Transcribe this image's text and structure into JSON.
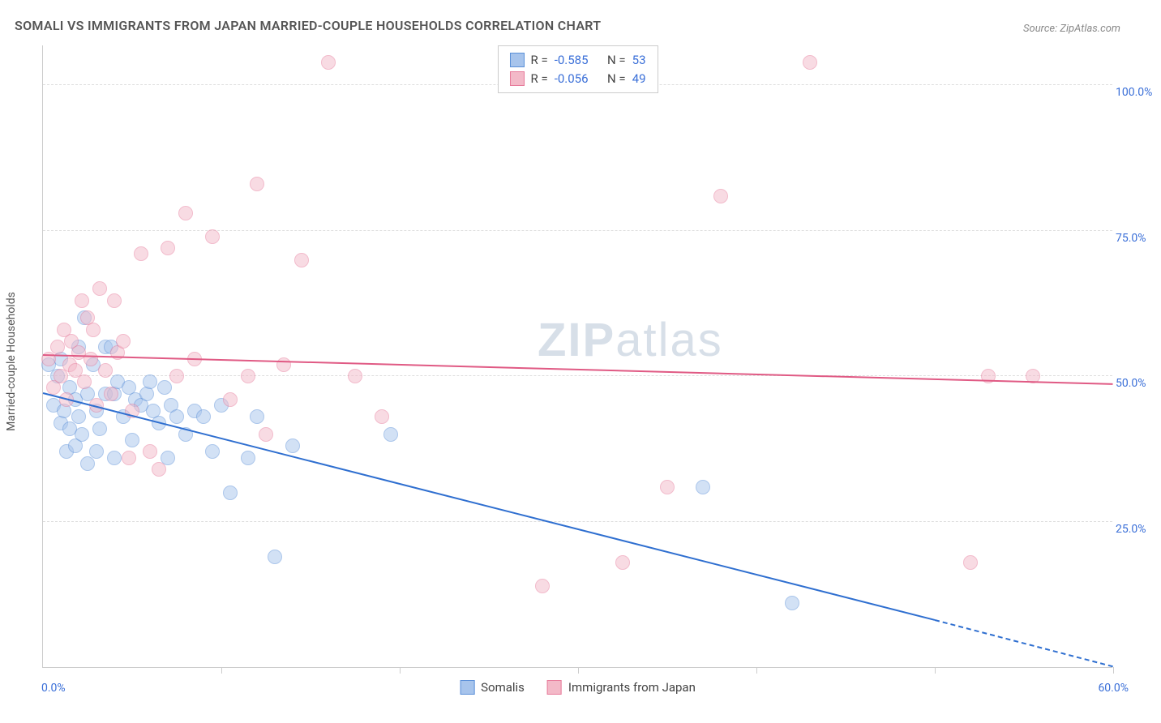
{
  "title": "SOMALI VS IMMIGRANTS FROM JAPAN MARRIED-COUPLE HOUSEHOLDS CORRELATION CHART",
  "source_label": "Source: ZipAtlas.com",
  "y_axis_title": "Married-couple Households",
  "watermark_bold": "ZIP",
  "watermark_rest": "atlas",
  "chart": {
    "type": "scatter",
    "xlim": [
      0,
      60
    ],
    "ylim": [
      0,
      107
    ],
    "x_ticks": [
      0,
      10,
      20,
      30,
      40,
      50,
      60
    ],
    "x_tick_labels_shown": {
      "0": "0.0%",
      "60": "60.0%"
    },
    "y_gridlines": [
      25,
      50,
      75,
      100
    ],
    "y_tick_labels": {
      "25": "25.0%",
      "50": "50.0%",
      "75": "75.0%",
      "100": "100.0%"
    },
    "background_color": "#ffffff",
    "grid_color": "#dddddd",
    "axis_color": "#cccccc",
    "tick_label_color": "#3a6fd8",
    "marker_radius": 9,
    "marker_opacity": 0.5,
    "series": [
      {
        "name": "Somalis",
        "color_fill": "#a7c4ec",
        "color_stroke": "#5a8fd8",
        "trend_color": "#2f6fd0",
        "R": "-0.585",
        "N": "53",
        "trend": {
          "x1": 0,
          "y1": 47,
          "x2": 50,
          "y2": 8,
          "x2_dash": 60,
          "y2_dash": 0
        },
        "points": [
          [
            0.3,
            52
          ],
          [
            0.6,
            45
          ],
          [
            0.8,
            50
          ],
          [
            1.0,
            42
          ],
          [
            1.0,
            53
          ],
          [
            1.2,
            44
          ],
          [
            1.3,
            37
          ],
          [
            1.5,
            48
          ],
          [
            1.5,
            41
          ],
          [
            1.8,
            46
          ],
          [
            1.8,
            38
          ],
          [
            2.0,
            55
          ],
          [
            2.0,
            43
          ],
          [
            2.2,
            40
          ],
          [
            2.3,
            60
          ],
          [
            2.5,
            47
          ],
          [
            2.5,
            35
          ],
          [
            2.8,
            52
          ],
          [
            3.0,
            37
          ],
          [
            3.0,
            44
          ],
          [
            3.2,
            41
          ],
          [
            3.5,
            55
          ],
          [
            3.5,
            47
          ],
          [
            3.8,
            55
          ],
          [
            4.0,
            36
          ],
          [
            4.0,
            47
          ],
          [
            4.2,
            49
          ],
          [
            4.5,
            43
          ],
          [
            4.8,
            48
          ],
          [
            5.0,
            39
          ],
          [
            5.2,
            46
          ],
          [
            5.5,
            45
          ],
          [
            5.8,
            47
          ],
          [
            6.0,
            49
          ],
          [
            6.2,
            44
          ],
          [
            6.5,
            42
          ],
          [
            6.8,
            48
          ],
          [
            7.0,
            36
          ],
          [
            7.2,
            45
          ],
          [
            7.5,
            43
          ],
          [
            8.0,
            40
          ],
          [
            8.5,
            44
          ],
          [
            9.0,
            43
          ],
          [
            9.5,
            37
          ],
          [
            10.0,
            45
          ],
          [
            10.5,
            30
          ],
          [
            11.5,
            36
          ],
          [
            12.0,
            43
          ],
          [
            13.0,
            19
          ],
          [
            14.0,
            38
          ],
          [
            19.5,
            40
          ],
          [
            37.0,
            31
          ],
          [
            42.0,
            11
          ]
        ]
      },
      {
        "name": "Immigrants from Japan",
        "color_fill": "#f3b9c8",
        "color_stroke": "#e77a9a",
        "trend_color": "#e05a84",
        "R": "-0.056",
        "N": "49",
        "trend": {
          "x1": 0,
          "y1": 53.5,
          "x2": 60,
          "y2": 48.5
        },
        "points": [
          [
            0.3,
            53
          ],
          [
            0.6,
            48
          ],
          [
            0.8,
            55
          ],
          [
            1.0,
            50
          ],
          [
            1.2,
            58
          ],
          [
            1.3,
            46
          ],
          [
            1.5,
            52
          ],
          [
            1.6,
            56
          ],
          [
            1.8,
            51
          ],
          [
            2.0,
            54
          ],
          [
            2.2,
            63
          ],
          [
            2.3,
            49
          ],
          [
            2.5,
            60
          ],
          [
            2.7,
            53
          ],
          [
            2.8,
            58
          ],
          [
            3.0,
            45
          ],
          [
            3.2,
            65
          ],
          [
            3.5,
            51
          ],
          [
            3.8,
            47
          ],
          [
            4.0,
            63
          ],
          [
            4.2,
            54
          ],
          [
            4.5,
            56
          ],
          [
            4.8,
            36
          ],
          [
            5.0,
            44
          ],
          [
            5.5,
            71
          ],
          [
            6.0,
            37
          ],
          [
            6.5,
            34
          ],
          [
            7.0,
            72
          ],
          [
            7.5,
            50
          ],
          [
            8.0,
            78
          ],
          [
            8.5,
            53
          ],
          [
            9.5,
            74
          ],
          [
            10.5,
            46
          ],
          [
            11.5,
            50
          ],
          [
            12.0,
            83
          ],
          [
            12.5,
            40
          ],
          [
            13.5,
            52
          ],
          [
            14.5,
            70
          ],
          [
            16.0,
            104
          ],
          [
            17.5,
            50
          ],
          [
            19.0,
            43
          ],
          [
            28.0,
            14
          ],
          [
            32.5,
            18
          ],
          [
            35.0,
            31
          ],
          [
            38.0,
            81
          ],
          [
            43.0,
            104
          ],
          [
            52.0,
            18
          ],
          [
            55.5,
            50
          ],
          [
            53.0,
            50
          ]
        ]
      }
    ]
  },
  "legend": {
    "series1_label": "Somalis",
    "series2_label": "Immigrants from Japan"
  },
  "stats_labels": {
    "R": "R =",
    "N": "N ="
  }
}
